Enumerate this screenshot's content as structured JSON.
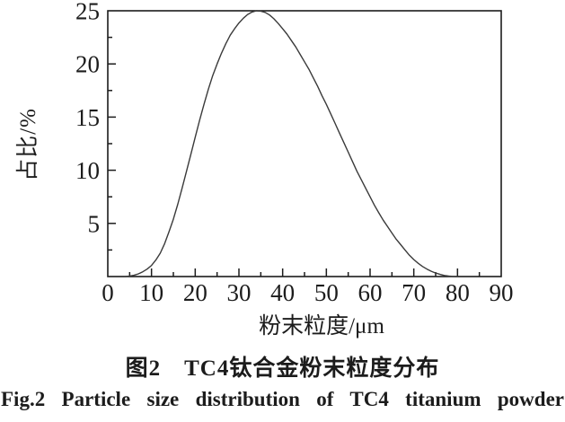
{
  "figure": {
    "captions": {
      "zh": "图2　TC4钛合金粉末粒度分布",
      "en": "Fig.2 Particle size distribution of TC4 titanium powder"
    }
  },
  "chart_data": {
    "type": "line",
    "title": "",
    "xlabel": "粉末粒度/μm",
    "ylabel": "占比/%",
    "xlim": [
      0,
      90
    ],
    "ylim": [
      0,
      25
    ],
    "x_tick_labels": [
      0,
      10,
      20,
      30,
      40,
      50,
      60,
      70,
      80,
      90
    ],
    "y_tick_labels": [
      5,
      10,
      15,
      20,
      25
    ],
    "x_tick_major": 10,
    "x_tick_minor": 5,
    "y_tick_major": 5,
    "y_tick_minor": 2.5,
    "grid": false,
    "legend": "none",
    "frame": "full-box",
    "axis_color": "#1c1c1c",
    "tick_label_color": "#1c1c1c",
    "series": [
      {
        "name": "TC4 titanium powder particle size distribution",
        "color": "#3a3a3a",
        "peak": {
          "x": 34,
          "y": 25
        },
        "points": [
          [
            4,
            0
          ],
          [
            5,
            0.05
          ],
          [
            6,
            0.12
          ],
          [
            7,
            0.25
          ],
          [
            8,
            0.45
          ],
          [
            9,
            0.7
          ],
          [
            10,
            1.05
          ],
          [
            11,
            1.55
          ],
          [
            12,
            2.2
          ],
          [
            13,
            3.1
          ],
          [
            14,
            4.2
          ],
          [
            15,
            5.4
          ],
          [
            16,
            6.8
          ],
          [
            17,
            8.3
          ],
          [
            18,
            9.9
          ],
          [
            19,
            11.5
          ],
          [
            20,
            13.1
          ],
          [
            21,
            14.7
          ],
          [
            22,
            16.2
          ],
          [
            23,
            17.6
          ],
          [
            24,
            18.9
          ],
          [
            25,
            20.0
          ],
          [
            26,
            21.0
          ],
          [
            27,
            21.9
          ],
          [
            28,
            22.7
          ],
          [
            29,
            23.3
          ],
          [
            30,
            23.85
          ],
          [
            31,
            24.3
          ],
          [
            32,
            24.65
          ],
          [
            33,
            24.88
          ],
          [
            34,
            25.0
          ],
          [
            35,
            24.97
          ],
          [
            36,
            24.85
          ],
          [
            37,
            24.6
          ],
          [
            38,
            24.25
          ],
          [
            39,
            23.8
          ],
          [
            40,
            23.3
          ],
          [
            41,
            22.8
          ],
          [
            42,
            22.2
          ],
          [
            43,
            21.6
          ],
          [
            44,
            20.9
          ],
          [
            45,
            20.2
          ],
          [
            46,
            19.5
          ],
          [
            47,
            18.7
          ],
          [
            48,
            17.9
          ],
          [
            49,
            17.0
          ],
          [
            50,
            16.2
          ],
          [
            51,
            15.3
          ],
          [
            52,
            14.4
          ],
          [
            53,
            13.5
          ],
          [
            54,
            12.6
          ],
          [
            55,
            11.7
          ],
          [
            56,
            10.8
          ],
          [
            57,
            9.9
          ],
          [
            58,
            9.1
          ],
          [
            59,
            8.3
          ],
          [
            60,
            7.5
          ],
          [
            61,
            6.7
          ],
          [
            62,
            6.0
          ],
          [
            63,
            5.3
          ],
          [
            64,
            4.7
          ],
          [
            65,
            4.1
          ],
          [
            66,
            3.5
          ],
          [
            67,
            3.0
          ],
          [
            68,
            2.5
          ],
          [
            69,
            2.0
          ],
          [
            70,
            1.6
          ],
          [
            71,
            1.25
          ],
          [
            72,
            0.95
          ],
          [
            73,
            0.7
          ],
          [
            74,
            0.5
          ],
          [
            75,
            0.33
          ],
          [
            76,
            0.2
          ],
          [
            77,
            0.1
          ],
          [
            78,
            0.04
          ],
          [
            79,
            0.01
          ],
          [
            80,
            0
          ]
        ]
      }
    ]
  }
}
